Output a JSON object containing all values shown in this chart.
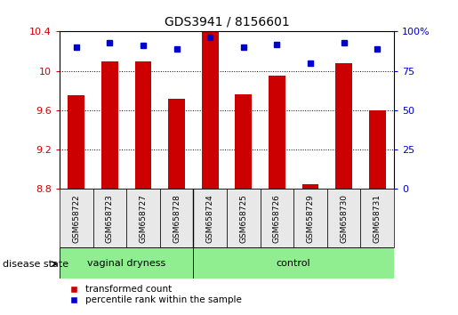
{
  "title": "GDS3941 / 8156601",
  "samples": [
    "GSM658722",
    "GSM658723",
    "GSM658727",
    "GSM658728",
    "GSM658724",
    "GSM658725",
    "GSM658726",
    "GSM658729",
    "GSM658730",
    "GSM658731"
  ],
  "red_values": [
    9.75,
    10.1,
    10.1,
    9.72,
    10.4,
    9.76,
    9.95,
    8.85,
    10.08,
    9.6
  ],
  "blue_values": [
    90,
    93,
    91,
    89,
    96,
    90,
    92,
    80,
    93,
    89
  ],
  "group_names": [
    "vaginal dryness",
    "control"
  ],
  "group_split": 4,
  "ylim_left": [
    8.8,
    10.4
  ],
  "ylim_right": [
    0,
    100
  ],
  "yticks_left": [
    8.8,
    9.2,
    9.6,
    10.0,
    10.4
  ],
  "yticks_right": [
    0,
    25,
    50,
    75,
    100
  ],
  "ytick_labels_left": [
    "8.8",
    "9.2",
    "9.6",
    "10",
    "10.4"
  ],
  "ytick_labels_right": [
    "0",
    "25",
    "50",
    "75",
    "100%"
  ],
  "red_color": "#CC0000",
  "blue_color": "#0000CC",
  "bar_width": 0.5,
  "legend_red": "transformed count",
  "legend_blue": "percentile rank within the sample",
  "disease_label": "disease state",
  "bg_color": "#e8e8e8",
  "green_color": "#90EE90"
}
